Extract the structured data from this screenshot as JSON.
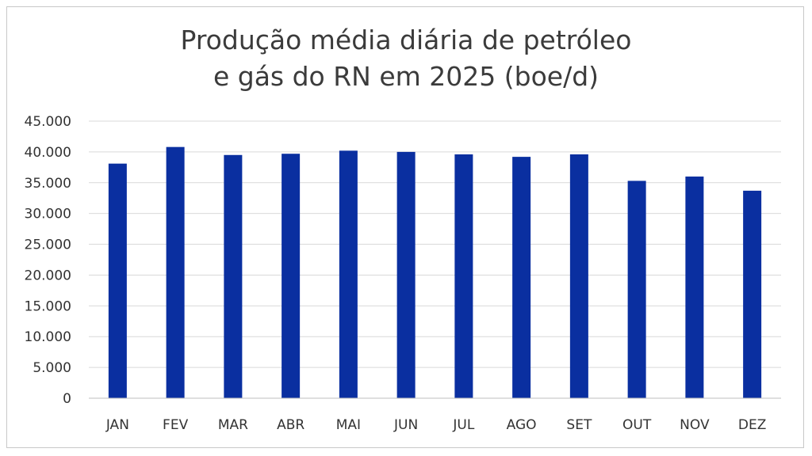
{
  "chart_data": {
    "type": "bar",
    "title_line1": "Produção média diária de petróleo",
    "title_line2": "e gás do RN em 2025 (boe/d)",
    "xlabel": "",
    "ylabel": "",
    "categories": [
      "JAN",
      "FEV",
      "MAR",
      "ABR",
      "MAI",
      "JUN",
      "JUL",
      "AGO",
      "SET",
      "OUT",
      "NOV",
      "DEZ"
    ],
    "values": [
      38100,
      40800,
      39500,
      39700,
      40200,
      40000,
      39600,
      39200,
      39600,
      35300,
      36000,
      33700
    ],
    "ylim": [
      0,
      45000
    ],
    "yticks": [
      0,
      5000,
      10000,
      15000,
      20000,
      25000,
      30000,
      35000,
      40000,
      45000
    ],
    "ytick_labels": [
      "0",
      "5.000",
      "10.000",
      "15.000",
      "20.000",
      "25.000",
      "30.000",
      "35.000",
      "40.000",
      "45.000"
    ],
    "bar_color": "#0a2fa0",
    "grid": true,
    "legend": "none"
  }
}
